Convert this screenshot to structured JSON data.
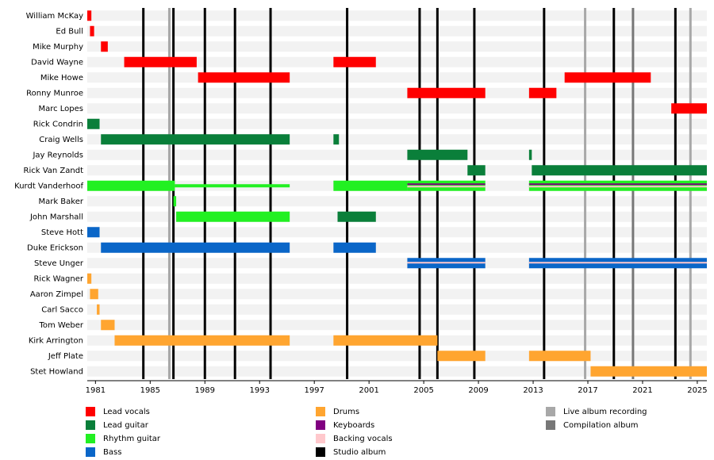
{
  "chart_data": {
    "type": "timeline",
    "xlim": [
      1980.4,
      2025.7
    ],
    "xticks": [
      1981,
      1985,
      1989,
      1993,
      1997,
      2001,
      2005,
      2009,
      2013,
      2017,
      2021,
      2025
    ],
    "roles": [
      {
        "name": "Lead vocals",
        "color": "#ff0000"
      },
      {
        "name": "Lead guitar",
        "color": "#0a7f3a"
      },
      {
        "name": "Rhythm guitar",
        "color": "#22f022"
      },
      {
        "name": "Bass",
        "color": "#0a66c8"
      },
      {
        "name": "Drums",
        "color": "#ffa530"
      },
      {
        "name": "Keyboards",
        "color": "#800080"
      },
      {
        "name": "Backing vocals",
        "color": "#ffc8cc"
      }
    ],
    "events": [
      {
        "name": "Studio album",
        "color": "#000000",
        "years": [
          1984.5,
          1986.7,
          1989.0,
          1991.2,
          1993.8,
          1999.4,
          2004.7,
          2006.0,
          2008.7,
          2013.8,
          2018.9,
          2023.4
        ]
      },
      {
        "name": "Live album recording",
        "color": "#a8a8a8",
        "years": [
          1986.4,
          2016.8,
          2024.5
        ]
      },
      {
        "name": "Compilation album",
        "color": "#777777",
        "years": [
          2020.3
        ]
      }
    ],
    "members": [
      {
        "name": "William McKay",
        "bars": [
          {
            "start": 1980.4,
            "end": 1980.7,
            "roles": [
              0
            ]
          }
        ]
      },
      {
        "name": "Ed Bull",
        "bars": [
          {
            "start": 1980.6,
            "end": 1980.9,
            "roles": [
              0
            ]
          }
        ]
      },
      {
        "name": "Mike Murphy",
        "bars": [
          {
            "start": 1981.4,
            "end": 1981.9,
            "roles": [
              0
            ]
          }
        ]
      },
      {
        "name": "David Wayne",
        "bars": [
          {
            "start": 1983.1,
            "end": 1988.4,
            "roles": [
              0
            ]
          },
          {
            "start": 1998.4,
            "end": 2001.5,
            "roles": [
              0
            ]
          }
        ]
      },
      {
        "name": "Mike Howe",
        "bars": [
          {
            "start": 1988.5,
            "end": 1995.2,
            "roles": [
              0
            ]
          },
          {
            "start": 2015.3,
            "end": 2021.6,
            "roles": [
              0
            ]
          }
        ]
      },
      {
        "name": "Ronny Munroe",
        "bars": [
          {
            "start": 2003.8,
            "end": 2009.5,
            "roles": [
              0
            ]
          },
          {
            "start": 2012.7,
            "end": 2014.7,
            "roles": [
              0
            ]
          }
        ]
      },
      {
        "name": "Marc Lopes",
        "bars": [
          {
            "start": 2023.1,
            "end": 2025.7,
            "roles": [
              0
            ]
          }
        ]
      },
      {
        "name": "Rick Condrin",
        "bars": [
          {
            "start": 1980.4,
            "end": 1981.3,
            "roles": [
              1
            ]
          }
        ]
      },
      {
        "name": "Craig Wells",
        "bars": [
          {
            "start": 1981.4,
            "end": 1995.2,
            "roles": [
              1
            ]
          },
          {
            "start": 1998.4,
            "end": 1998.8,
            "roles": [
              1
            ]
          }
        ]
      },
      {
        "name": "Jay Reynolds",
        "bars": [
          {
            "start": 2003.8,
            "end": 2008.2,
            "roles": [
              1
            ]
          },
          {
            "start": 2012.7,
            "end": 2012.9,
            "roles": [
              1
            ]
          }
        ]
      },
      {
        "name": "Rick Van Zandt",
        "bars": [
          {
            "start": 2008.2,
            "end": 2009.5,
            "roles": [
              1
            ]
          },
          {
            "start": 2012.9,
            "end": 2025.7,
            "roles": [
              1
            ]
          }
        ]
      },
      {
        "name": "Kurdt Vanderhoof",
        "bars": [
          {
            "start": 1980.4,
            "end": 1986.8,
            "roles": [
              2
            ]
          },
          {
            "start": 1986.8,
            "end": 1995.2,
            "roles": [
              2
            ],
            "thin": true
          },
          {
            "start": 1998.4,
            "end": 2003.8,
            "roles": [
              2
            ]
          },
          {
            "start": 2003.8,
            "end": 2009.5,
            "roles": [
              2,
              5,
              6
            ]
          },
          {
            "start": 2012.7,
            "end": 2025.7,
            "roles": [
              2,
              5,
              6
            ]
          }
        ]
      },
      {
        "name": "Mark Baker",
        "bars": [
          {
            "start": 1986.7,
            "end": 1986.9,
            "roles": [
              2
            ]
          }
        ]
      },
      {
        "name": "John Marshall",
        "bars": [
          {
            "start": 1986.9,
            "end": 1995.2,
            "roles": [
              2
            ]
          },
          {
            "start": 1998.7,
            "end": 2001.5,
            "roles": [
              1
            ]
          }
        ]
      },
      {
        "name": "Steve Hott",
        "bars": [
          {
            "start": 1980.4,
            "end": 1981.3,
            "roles": [
              3
            ]
          }
        ]
      },
      {
        "name": "Duke Erickson",
        "bars": [
          {
            "start": 1981.4,
            "end": 1995.2,
            "roles": [
              3
            ]
          },
          {
            "start": 1998.4,
            "end": 2001.5,
            "roles": [
              3
            ]
          }
        ]
      },
      {
        "name": "Steve Unger",
        "bars": [
          {
            "start": 2003.8,
            "end": 2009.5,
            "roles": [
              3,
              6
            ]
          },
          {
            "start": 2012.7,
            "end": 2025.7,
            "roles": [
              3,
              6
            ]
          }
        ]
      },
      {
        "name": "Rick Wagner",
        "bars": [
          {
            "start": 1980.4,
            "end": 1980.7,
            "roles": [
              4
            ]
          }
        ]
      },
      {
        "name": "Aaron Zimpel",
        "bars": [
          {
            "start": 1980.6,
            "end": 1981.2,
            "roles": [
              4
            ]
          }
        ]
      },
      {
        "name": "Carl Sacco",
        "bars": [
          {
            "start": 1981.1,
            "end": 1981.3,
            "roles": [
              4
            ]
          }
        ]
      },
      {
        "name": "Tom Weber",
        "bars": [
          {
            "start": 1981.4,
            "end": 1982.4,
            "roles": [
              4
            ]
          }
        ]
      },
      {
        "name": "Kirk Arrington",
        "bars": [
          {
            "start": 1982.4,
            "end": 1995.2,
            "roles": [
              4
            ]
          },
          {
            "start": 1998.4,
            "end": 2006.0,
            "roles": [
              4
            ]
          }
        ]
      },
      {
        "name": "Jeff Plate",
        "bars": [
          {
            "start": 2006.0,
            "end": 2009.5,
            "roles": [
              4
            ]
          },
          {
            "start": 2012.7,
            "end": 2017.2,
            "roles": [
              4
            ]
          }
        ]
      },
      {
        "name": "Stet Howland",
        "bars": [
          {
            "start": 2017.2,
            "end": 2025.7,
            "roles": [
              4
            ]
          }
        ]
      }
    ]
  }
}
